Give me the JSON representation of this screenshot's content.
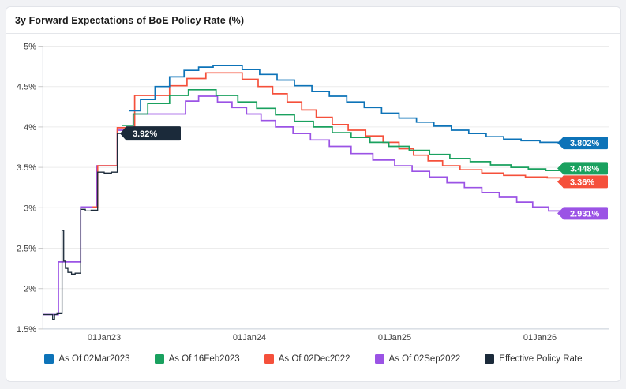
{
  "header": {
    "title": "3y Forward Expectations of BoE Policy Rate (%)"
  },
  "colors": {
    "page_bg": "#f1f2f5",
    "card_bg": "#ffffff",
    "card_border": "#e2e4e9",
    "gridline": "#ececec",
    "axis_line": "#c5cdd6",
    "axis_spine": "#e7eaee",
    "tick_text": "#3f3f3f",
    "tag_text": "#ffffff"
  },
  "chart_data": {
    "type": "line",
    "step": true,
    "title": "3y Forward Expectations of BoE Policy Rate (%)",
    "xlabel": "",
    "ylabel": "",
    "grid": "horizontal",
    "legend_position": "bottom",
    "x_axis": {
      "range": [
        2022.55,
        2026.35
      ],
      "ticks": [
        {
          "label": "01Jan23",
          "t": 2023
        },
        {
          "label": "01Jan24",
          "t": 2024
        },
        {
          "label": "01Jan25",
          "t": 2025
        },
        {
          "label": "01Jan26",
          "t": 2026
        }
      ]
    },
    "y_axis": {
      "unit": "%",
      "range": [
        1.5,
        5
      ],
      "ticks": [
        {
          "label": "5%",
          "v": 5
        },
        {
          "label": "4.5%",
          "v": 4.5
        },
        {
          "label": "4%",
          "v": 4
        },
        {
          "label": "3.5%",
          "v": 3.5
        },
        {
          "label": "3%",
          "v": 3
        },
        {
          "label": "2.5%",
          "v": 2.5
        },
        {
          "label": "2%",
          "v": 2
        },
        {
          "label": "1.5%",
          "v": 1.5
        }
      ]
    },
    "series": [
      {
        "name": "As Of 02Mar2023",
        "color": "#0d73b8",
        "end_label": "3.802%",
        "draw_order": 3,
        "points": [
          [
            2023.17,
            4.2
          ],
          [
            2023.25,
            4.34
          ],
          [
            2023.35,
            4.5
          ],
          [
            2023.45,
            4.62
          ],
          [
            2023.55,
            4.7
          ],
          [
            2023.65,
            4.74
          ],
          [
            2023.75,
            4.76
          ],
          [
            2023.95,
            4.71
          ],
          [
            2024.07,
            4.65
          ],
          [
            2024.19,
            4.58
          ],
          [
            2024.31,
            4.51
          ],
          [
            2024.43,
            4.44
          ],
          [
            2024.55,
            4.38
          ],
          [
            2024.67,
            4.31
          ],
          [
            2024.79,
            4.24
          ],
          [
            2024.91,
            4.17
          ],
          [
            2025.03,
            4.11
          ],
          [
            2025.15,
            4.06
          ],
          [
            2025.27,
            4.01
          ],
          [
            2025.39,
            3.96
          ],
          [
            2025.51,
            3.92
          ],
          [
            2025.63,
            3.88
          ],
          [
            2025.75,
            3.85
          ],
          [
            2025.87,
            3.83
          ],
          [
            2026.0,
            3.81
          ],
          [
            2026.16,
            3.802
          ]
        ]
      },
      {
        "name": "As Of 16Feb2023",
        "color": "#1aa15f",
        "end_label": "3.448%",
        "draw_order": 2,
        "points": [
          [
            2023.12,
            4.02
          ],
          [
            2023.2,
            4.16
          ],
          [
            2023.3,
            4.29
          ],
          [
            2023.45,
            4.39
          ],
          [
            2023.58,
            4.46
          ],
          [
            2023.77,
            4.39
          ],
          [
            2023.92,
            4.31
          ],
          [
            2024.05,
            4.23
          ],
          [
            2024.18,
            4.15
          ],
          [
            2024.31,
            4.07
          ],
          [
            2024.44,
            4.0
          ],
          [
            2024.57,
            3.93
          ],
          [
            2024.7,
            3.87
          ],
          [
            2024.83,
            3.81
          ],
          [
            2024.96,
            3.76
          ],
          [
            2025.1,
            3.71
          ],
          [
            2025.24,
            3.66
          ],
          [
            2025.38,
            3.61
          ],
          [
            2025.52,
            3.57
          ],
          [
            2025.66,
            3.53
          ],
          [
            2025.8,
            3.5
          ],
          [
            2025.92,
            3.48
          ],
          [
            2026.04,
            3.46
          ],
          [
            2026.16,
            3.448
          ]
        ]
      },
      {
        "name": "As Of 02Dec2022",
        "color": "#f5503b",
        "end_label": "3.36%",
        "draw_order": 1,
        "points": [
          [
            2022.92,
            3.01
          ],
          [
            2022.955,
            3.52
          ],
          [
            2023.09,
            3.99
          ],
          [
            2023.21,
            4.39
          ],
          [
            2023.45,
            4.51
          ],
          [
            2023.57,
            4.6
          ],
          [
            2023.7,
            4.67
          ],
          [
            2023.95,
            4.59
          ],
          [
            2024.06,
            4.5
          ],
          [
            2024.16,
            4.41
          ],
          [
            2024.26,
            4.31
          ],
          [
            2024.36,
            4.21
          ],
          [
            2024.46,
            4.12
          ],
          [
            2024.57,
            4.03
          ],
          [
            2024.68,
            3.96
          ],
          [
            2024.8,
            3.89
          ],
          [
            2024.92,
            3.81
          ],
          [
            2025.03,
            3.73
          ],
          [
            2025.13,
            3.65
          ],
          [
            2025.23,
            3.58
          ],
          [
            2025.33,
            3.52
          ],
          [
            2025.45,
            3.47
          ],
          [
            2025.6,
            3.43
          ],
          [
            2025.75,
            3.4
          ],
          [
            2025.9,
            3.38
          ],
          [
            2026.05,
            3.37
          ],
          [
            2026.16,
            3.36
          ]
        ]
      },
      {
        "name": "As Of 02Sep2022",
        "color": "#9b53e5",
        "end_label": "2.931%",
        "draw_order": 0,
        "points": [
          [
            2022.58,
            1.68
          ],
          [
            2022.685,
            2.33
          ],
          [
            2022.838,
            3.01
          ],
          [
            2022.95,
            3.52
          ],
          [
            2023.09,
            3.96
          ],
          [
            2023.2,
            4.16
          ],
          [
            2023.56,
            4.32
          ],
          [
            2023.65,
            4.38
          ],
          [
            2023.78,
            4.31
          ],
          [
            2023.88,
            4.24
          ],
          [
            2023.98,
            4.16
          ],
          [
            2024.08,
            4.08
          ],
          [
            2024.18,
            4.0
          ],
          [
            2024.3,
            3.92
          ],
          [
            2024.42,
            3.84
          ],
          [
            2024.55,
            3.76
          ],
          [
            2024.7,
            3.67
          ],
          [
            2024.85,
            3.59
          ],
          [
            2025.0,
            3.52
          ],
          [
            2025.12,
            3.45
          ],
          [
            2025.24,
            3.38
          ],
          [
            2025.36,
            3.31
          ],
          [
            2025.48,
            3.25
          ],
          [
            2025.6,
            3.19
          ],
          [
            2025.72,
            3.13
          ],
          [
            2025.84,
            3.07
          ],
          [
            2025.95,
            3.01
          ],
          [
            2026.06,
            2.96
          ],
          [
            2026.16,
            2.931
          ]
        ]
      },
      {
        "name": "Effective Policy Rate",
        "color": "#1b2a3a",
        "end_label": "3.92%",
        "label_inside": true,
        "draw_order": 4,
        "points": [
          [
            2022.58,
            1.68
          ],
          [
            2022.645,
            1.62
          ],
          [
            2022.658,
            1.68
          ],
          [
            2022.675,
            1.69
          ],
          [
            2022.71,
            2.72
          ],
          [
            2022.721,
            2.34
          ],
          [
            2022.733,
            2.25
          ],
          [
            2022.75,
            2.2
          ],
          [
            2022.775,
            2.18
          ],
          [
            2022.8,
            2.19
          ],
          [
            2022.838,
            2.98
          ],
          [
            2022.87,
            2.96
          ],
          [
            2022.91,
            2.97
          ],
          [
            2022.955,
            3.44
          ],
          [
            2023.0,
            3.43
          ],
          [
            2023.05,
            3.44
          ],
          [
            2023.09,
            3.92
          ],
          [
            2023.17,
            3.92
          ]
        ]
      }
    ]
  }
}
